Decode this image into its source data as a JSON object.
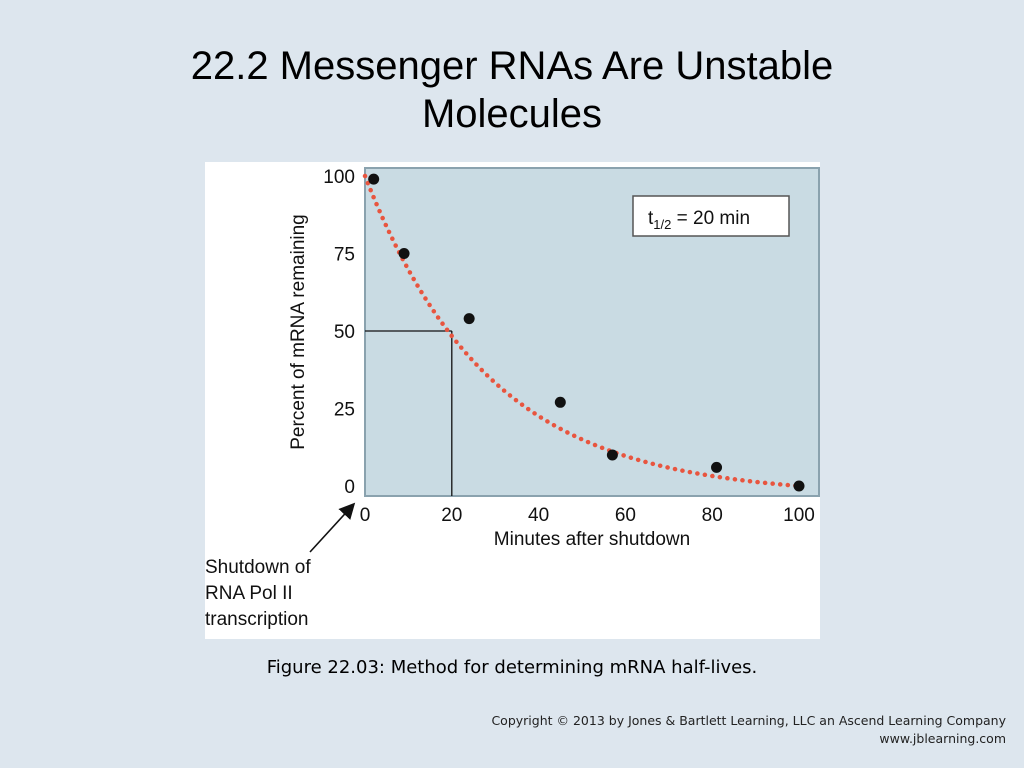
{
  "slide": {
    "title_line1": "22.2  Messenger RNAs Are Unstable",
    "title_line2": "Molecules",
    "caption": "Figure 22.03: Method for determining mRNA half-lives.",
    "copyright_line1": "Copyright © 2013 by Jones & Bartlett Learning, LLC an Ascend Learning Company",
    "copyright_line2": "www.jblearning.com"
  },
  "chart_data": {
    "type": "scatter",
    "xlabel": "Minutes after shutdown",
    "ylabel": "Percent of mRNA remaining",
    "xlim": [
      0,
      100
    ],
    "ylim": [
      0,
      100
    ],
    "x_ticks": [
      "0",
      "20",
      "40",
      "60",
      "80",
      "100"
    ],
    "y_ticks": [
      "0",
      "25",
      "50",
      "75",
      "100"
    ],
    "series": [
      {
        "x": [
          2,
          9,
          24,
          45,
          57,
          81,
          100
        ],
        "y": [
          99,
          75,
          54,
          27,
          10,
          6,
          0
        ]
      }
    ],
    "fit_curve": {
      "half_life_minutes": 20,
      "style": "dotted",
      "color": "#e8553f"
    },
    "half_life_marker": {
      "x": 20,
      "y": 50
    },
    "annotation_box": {
      "prefix": "t",
      "subscript": "1/2",
      "suffix": " = 20 min"
    },
    "arrow_label": [
      "Shutdown of",
      "RNA Pol II",
      "transcription"
    ],
    "plot_background": "#c9dbe3",
    "grid": false
  }
}
